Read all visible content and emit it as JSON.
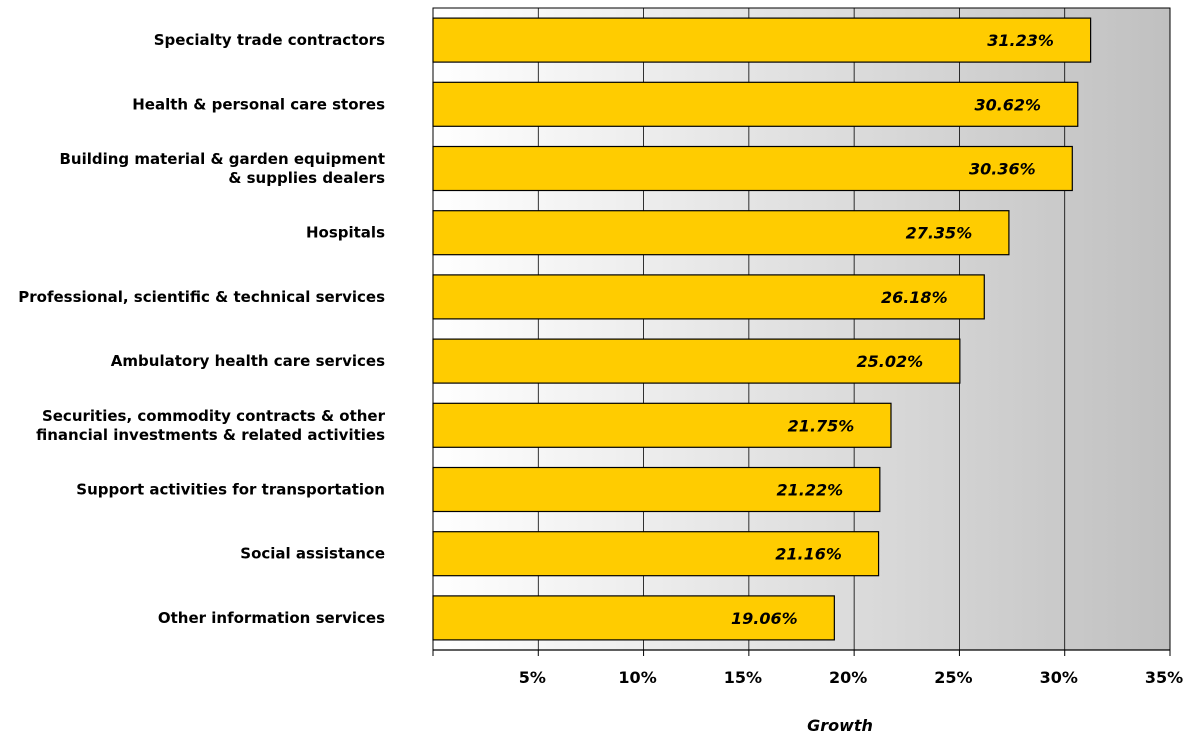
{
  "chart_data": {
    "type": "bar",
    "orientation": "horizontal",
    "categories": [
      [
        "Specialty trade contractors"
      ],
      [
        "Health & personal care stores"
      ],
      [
        "Building material & garden equipment",
        "& supplies dealers"
      ],
      [
        "Hospitals"
      ],
      [
        "Professional, scientific & technical services"
      ],
      [
        "Ambulatory health care services"
      ],
      [
        "Securities, commodity contracts & other",
        "financial investments & related activities"
      ],
      [
        "Support activities for transportation"
      ],
      [
        "Social assistance"
      ],
      [
        "Other information services"
      ]
    ],
    "values": [
      31.23,
      30.62,
      30.36,
      27.35,
      26.18,
      25.02,
      21.75,
      21.22,
      21.16,
      19.06
    ],
    "data_labels": [
      "31.23%",
      "30.62%",
      "30.36%",
      "27.35%",
      "26.18%",
      "25.02%",
      "21.75%",
      "21.22%",
      "21.16%",
      "19.06%"
    ],
    "xlim": [
      0,
      35
    ],
    "x_ticks": [
      5,
      10,
      15,
      20,
      25,
      30,
      35
    ],
    "x_tick_labels": [
      "5%",
      "10%",
      "15%",
      "20%",
      "25%",
      "30%",
      "35%"
    ],
    "xlabel": "Growth",
    "ylabel": "",
    "title": "",
    "grid": true,
    "legend": "none",
    "colors": {
      "bar_fill": "#FFCC00",
      "bar_stroke": "#000000",
      "plot_gradient_start": "#ffffff",
      "plot_gradient_end": "#c0c0c0",
      "grid": "#000000"
    }
  }
}
